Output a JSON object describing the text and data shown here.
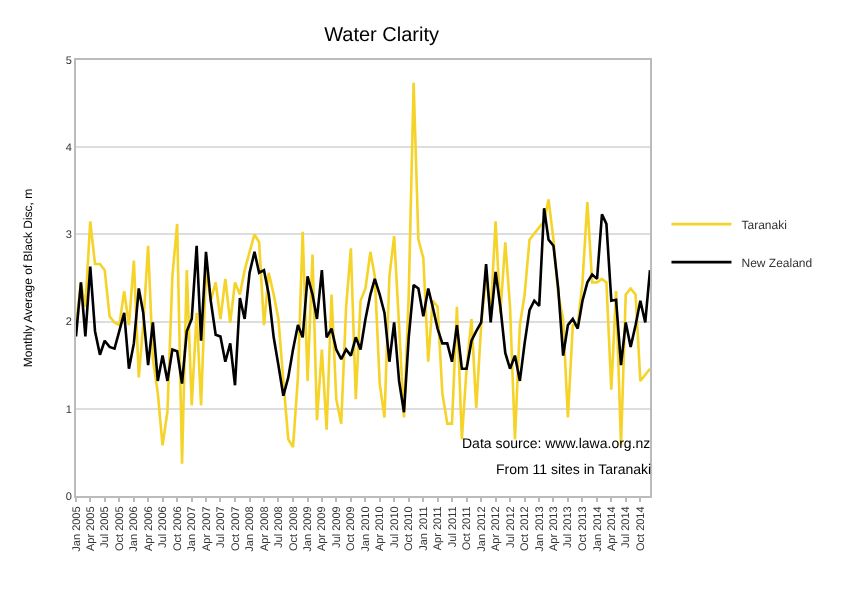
{
  "chart_data": {
    "type": "line",
    "title": "Water Clarity",
    "ylabel": "Monthly Average of Black Disc, m",
    "x": [
      "2005-01",
      "2005-02",
      "2005-03",
      "2005-04",
      "2005-05",
      "2005-06",
      "2005-07",
      "2005-08",
      "2005-09",
      "2005-10",
      "2005-11",
      "2005-12",
      "2006-01",
      "2006-02",
      "2006-03",
      "2006-04",
      "2006-05",
      "2006-06",
      "2006-07",
      "2006-08",
      "2006-09",
      "2006-10",
      "2006-11",
      "2006-12",
      "2007-01",
      "2007-02",
      "2007-03",
      "2007-04",
      "2007-05",
      "2007-06",
      "2007-07",
      "2007-08",
      "2007-09",
      "2007-10",
      "2007-11",
      "2007-12",
      "2008-01",
      "2008-02",
      "2008-03",
      "2008-04",
      "2008-05",
      "2008-06",
      "2008-07",
      "2008-08",
      "2008-09",
      "2008-10",
      "2008-11",
      "2008-12",
      "2009-01",
      "2009-02",
      "2009-03",
      "2009-04",
      "2009-05",
      "2009-06",
      "2009-07",
      "2009-08",
      "2009-09",
      "2009-10",
      "2009-11",
      "2009-12",
      "2010-01",
      "2010-02",
      "2010-03",
      "2010-04",
      "2010-05",
      "2010-06",
      "2010-07",
      "2010-08",
      "2010-09",
      "2010-10",
      "2010-11",
      "2010-12",
      "2011-01",
      "2011-02",
      "2011-03",
      "2011-04",
      "2011-05",
      "2011-06",
      "2011-07",
      "2011-08",
      "2011-09",
      "2011-10",
      "2011-11",
      "2011-12",
      "2012-01",
      "2012-02",
      "2012-03",
      "2012-04",
      "2012-05",
      "2012-06",
      "2012-07",
      "2012-08",
      "2012-09",
      "2012-10",
      "2012-11",
      "2012-12",
      "2013-01",
      "2013-02",
      "2013-03",
      "2013-04",
      "2013-05",
      "2013-06",
      "2013-07",
      "2013-08",
      "2013-09",
      "2013-10",
      "2013-11",
      "2013-12",
      "2014-01",
      "2014-02",
      "2014-03",
      "2014-04",
      "2014-05",
      "2014-06",
      "2014-07",
      "2014-08",
      "2014-09",
      "2014-10",
      "2014-11",
      "2014-12"
    ],
    "series": [
      {
        "name": "Taranaki",
        "color": "#f5d328",
        "values": [
          1.96,
          2.45,
          2.17,
          3.15,
          2.66,
          2.66,
          2.59,
          2.06,
          1.99,
          1.96,
          2.35,
          1.96,
          2.7,
          1.36,
          1.96,
          2.87,
          1.57,
          1.18,
          0.58,
          0.97,
          2.52,
          3.12,
          0.37,
          2.59,
          1.04,
          2.1,
          1.04,
          2.59,
          2.24,
          2.45,
          2.03,
          2.49,
          1.99,
          2.45,
          2.31,
          2.59,
          2.8,
          3.0,
          2.91,
          1.96,
          2.56,
          2.31,
          2.03,
          1.32,
          0.65,
          0.56,
          1.36,
          3.03,
          1.32,
          2.77,
          0.87,
          1.68,
          0.76,
          2.31,
          1.11,
          0.83,
          2.17,
          2.84,
          1.11,
          2.24,
          2.38,
          2.8,
          2.52,
          1.29,
          0.9,
          2.52,
          2.98,
          1.96,
          0.9,
          2.31,
          4.74,
          2.94,
          2.73,
          1.54,
          2.24,
          2.17,
          1.18,
          0.83,
          0.83,
          2.17,
          0.65,
          1.46,
          2.03,
          1.01,
          1.96,
          2.52,
          2.1,
          3.15,
          2.1,
          2.91,
          2.17,
          0.65,
          1.96,
          2.31,
          2.94,
          3.01,
          3.08,
          3.15,
          3.4,
          2.94,
          2.31,
          2.03,
          0.9,
          1.96,
          1.96,
          2.45,
          3.37,
          2.45,
          2.45,
          2.49,
          2.45,
          1.22,
          2.35,
          0.58,
          2.31,
          2.38,
          2.31,
          1.32,
          1.39,
          1.46
        ]
      },
      {
        "name": "New Zealand",
        "color": "#000000",
        "values": [
          1.83,
          2.45,
          1.83,
          2.63,
          1.89,
          1.62,
          1.78,
          1.71,
          1.69,
          1.89,
          2.1,
          1.46,
          1.75,
          2.38,
          2.1,
          1.5,
          1.99,
          1.32,
          1.61,
          1.32,
          1.68,
          1.66,
          1.29,
          1.89,
          2.03,
          2.87,
          1.78,
          2.8,
          2.24,
          1.85,
          1.83,
          1.54,
          1.75,
          1.27,
          2.27,
          2.03,
          2.56,
          2.8,
          2.56,
          2.59,
          2.31,
          1.82,
          1.5,
          1.15,
          1.36,
          1.68,
          1.96,
          1.82,
          2.52,
          2.31,
          2.03,
          2.59,
          1.82,
          1.92,
          1.68,
          1.57,
          1.68,
          1.61,
          1.82,
          1.68,
          2.03,
          2.31,
          2.49,
          2.31,
          2.1,
          1.54,
          1.99,
          1.32,
          0.96,
          1.82,
          2.42,
          2.38,
          2.06,
          2.38,
          2.17,
          1.92,
          1.75,
          1.75,
          1.54,
          1.96,
          1.46,
          1.46,
          1.78,
          1.89,
          1.99,
          2.66,
          1.99,
          2.57,
          2.17,
          1.64,
          1.46,
          1.61,
          1.32,
          1.75,
          2.13,
          2.24,
          2.18,
          3.3,
          2.94,
          2.87,
          2.38,
          1.61,
          1.96,
          2.03,
          1.92,
          2.24,
          2.45,
          2.54,
          2.49,
          3.23,
          3.12,
          2.24,
          2.25,
          1.5,
          1.99,
          1.71,
          1.96,
          2.24,
          1.99,
          2.59
        ]
      }
    ],
    "xlim": [
      "2005-01",
      "2014-12"
    ],
    "xticks": [
      {
        "value": "2005-01",
        "label": "Jan 2005"
      },
      {
        "value": "2005-04",
        "label": "Apr 2005"
      },
      {
        "value": "2005-07",
        "label": "Jul 2005"
      },
      {
        "value": "2005-10",
        "label": "Oct 2005"
      },
      {
        "value": "2006-01",
        "label": "Jan 2006"
      },
      {
        "value": "2006-04",
        "label": "Apr 2006"
      },
      {
        "value": "2006-07",
        "label": "Jul 2006"
      },
      {
        "value": "2006-10",
        "label": "Oct 2006"
      },
      {
        "value": "2007-01",
        "label": "Jan 2007"
      },
      {
        "value": "2007-04",
        "label": "Apr 2007"
      },
      {
        "value": "2007-07",
        "label": "Jul 2007"
      },
      {
        "value": "2007-10",
        "label": "Oct 2007"
      },
      {
        "value": "2008-01",
        "label": "Jan 2008"
      },
      {
        "value": "2008-04",
        "label": "Apr 2008"
      },
      {
        "value": "2008-07",
        "label": "Jul 2008"
      },
      {
        "value": "2008-10",
        "label": "Oct 2008"
      },
      {
        "value": "2009-01",
        "label": "Jan 2009"
      },
      {
        "value": "2009-04",
        "label": "Apr 2009"
      },
      {
        "value": "2009-07",
        "label": "Jul 2009"
      },
      {
        "value": "2009-10",
        "label": "Oct 2009"
      },
      {
        "value": "2010-01",
        "label": "Jan 2010"
      },
      {
        "value": "2010-04",
        "label": "Apr 2010"
      },
      {
        "value": "2010-07",
        "label": "Jul 2010"
      },
      {
        "value": "2010-10",
        "label": "Oct 2010"
      },
      {
        "value": "2011-01",
        "label": "Jan 2011"
      },
      {
        "value": "2011-04",
        "label": "Apr 2011"
      },
      {
        "value": "2011-07",
        "label": "Jul 2011"
      },
      {
        "value": "2011-10",
        "label": "Oct 2011"
      },
      {
        "value": "2012-01",
        "label": "Jan 2012"
      },
      {
        "value": "2012-04",
        "label": "Apr 2012"
      },
      {
        "value": "2012-07",
        "label": "Jul 2012"
      },
      {
        "value": "2012-10",
        "label": "Oct 2012"
      },
      {
        "value": "2013-01",
        "label": "Jan 2013"
      },
      {
        "value": "2013-04",
        "label": "Apr 2013"
      },
      {
        "value": "2013-07",
        "label": "Jul 2013"
      },
      {
        "value": "2013-10",
        "label": "Oct 2013"
      },
      {
        "value": "2014-01",
        "label": "Jan 2014"
      },
      {
        "value": "2014-04",
        "label": "Apr 2014"
      },
      {
        "value": "2014-07",
        "label": "Jul 2014"
      },
      {
        "value": "2014-10",
        "label": "Oct 2014"
      }
    ],
    "ylim": [
      0,
      5
    ],
    "yticks": [
      0,
      1,
      2,
      3,
      4,
      5
    ],
    "grid": "y",
    "legend": "right",
    "line_style": "solid",
    "annotations": [
      "Data source: www.lawa.org.nz",
      "From 11 sites in Taranaki"
    ]
  }
}
